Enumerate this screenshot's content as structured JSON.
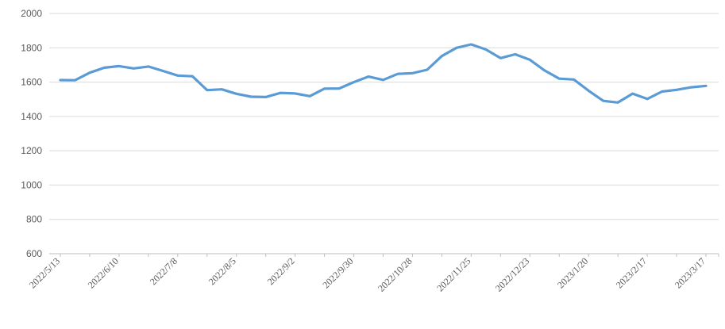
{
  "chart_data": {
    "type": "line",
    "title": "",
    "xlabel": "",
    "ylabel": "",
    "legend": "none",
    "grid": "horizontal",
    "ylim": [
      600,
      2000
    ],
    "y_ticks": [
      600,
      800,
      1000,
      1200,
      1400,
      1600,
      1800,
      2000
    ],
    "x_tick_labels": [
      "2022/5/13",
      "2022/6/10",
      "2022/7/8",
      "2022/8/5",
      "2022/9/2",
      "2022/9/30",
      "2022/10/28",
      "2022/11/25",
      "2022/12/23",
      "2023/1/20",
      "2023/2/17",
      "2023/3/17"
    ],
    "label_every_n_points": 4,
    "n_points": 45,
    "x_frequency": "weekly",
    "series": [
      {
        "name": "value",
        "values": [
          1612,
          1611,
          1655,
          1684,
          1693,
          1680,
          1691,
          1665,
          1638,
          1634,
          1553,
          1558,
          1532,
          1515,
          1513,
          1537,
          1534,
          1518,
          1562,
          1563,
          1600,
          1632,
          1613,
          1648,
          1652,
          1672,
          1752,
          1800,
          1820,
          1790,
          1740,
          1762,
          1730,
          1668,
          1620,
          1615,
          1550,
          1491,
          1481,
          1533,
          1502,
          1545,
          1555,
          1570,
          1578
        ]
      }
    ],
    "colors": {
      "line": "#5B9BD5",
      "gridline": "#D9D9D9",
      "axis": "#BFBFBF",
      "tick_label": "#595959",
      "background": "#FFFFFF"
    }
  }
}
